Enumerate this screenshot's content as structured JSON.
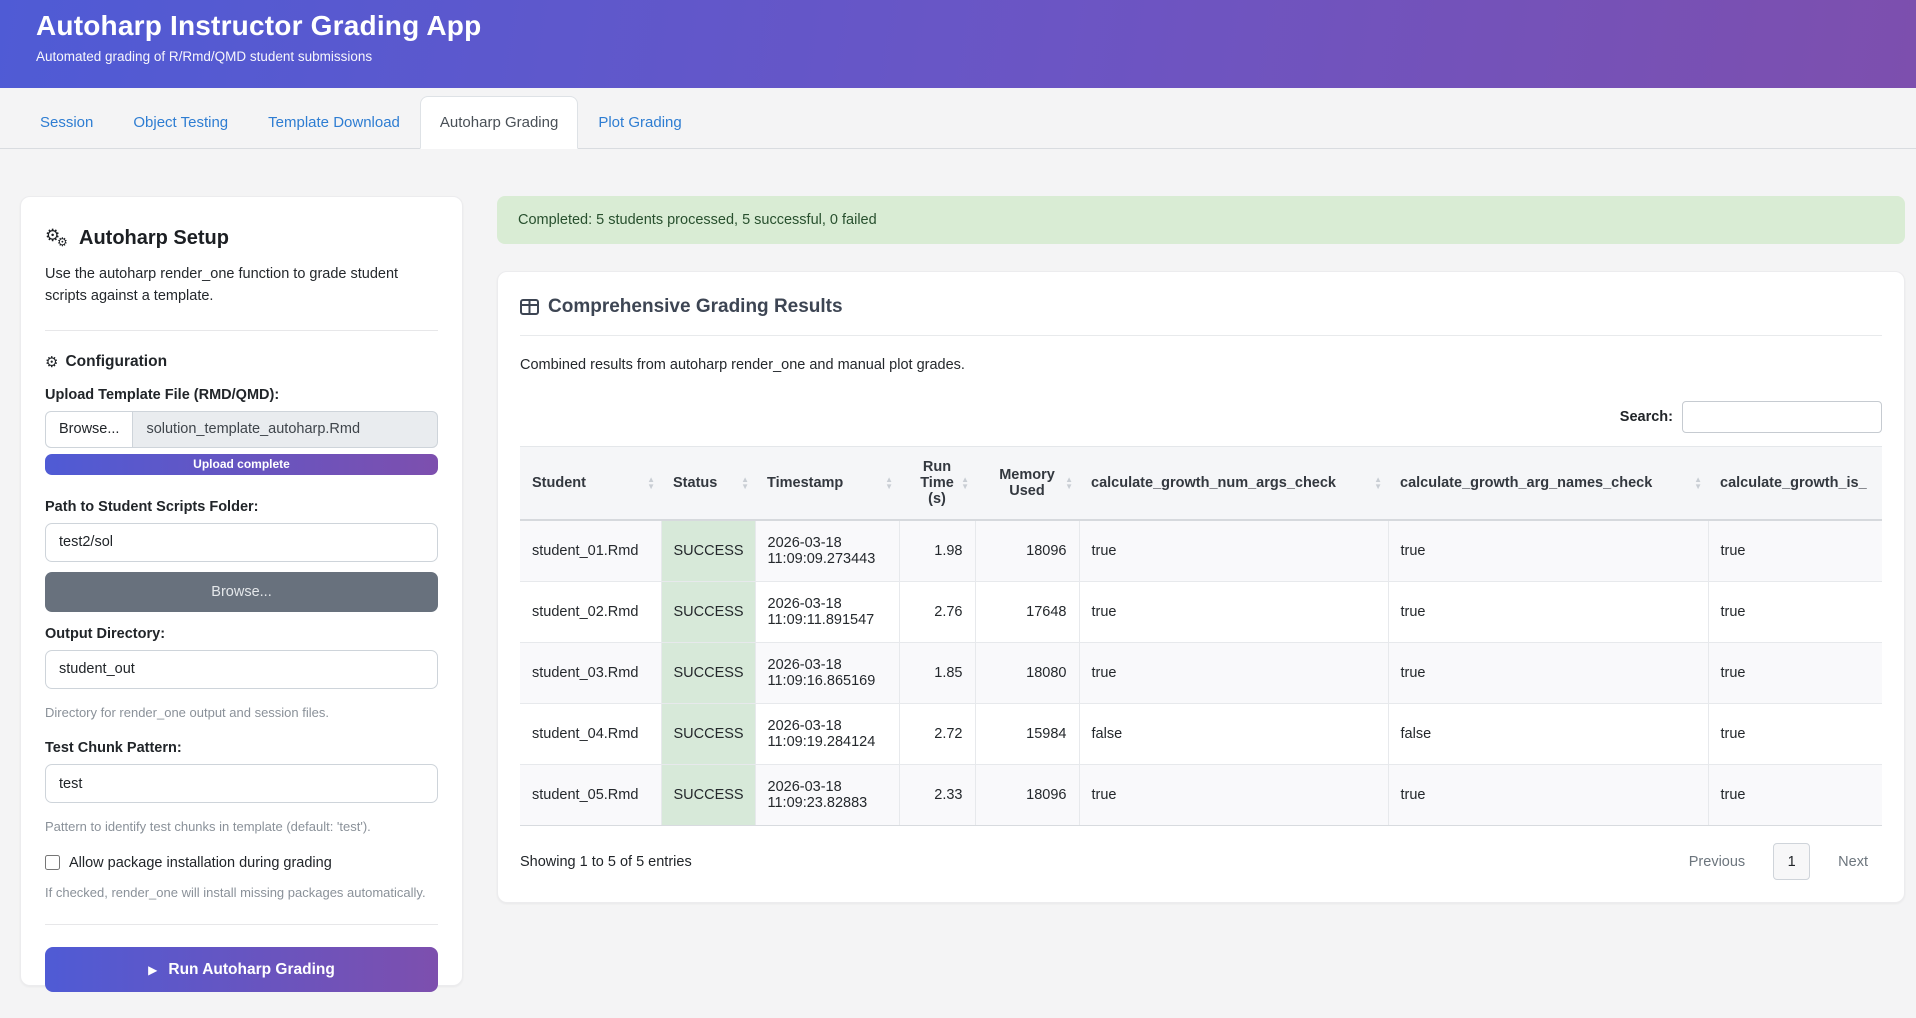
{
  "header": {
    "title": "Autoharp Instructor Grading App",
    "subtitle": "Automated grading of R/Rmd/QMD student submissions"
  },
  "tabs": [
    {
      "label": "Session",
      "active": false
    },
    {
      "label": "Object Testing",
      "active": false
    },
    {
      "label": "Template Download",
      "active": false
    },
    {
      "label": "Autoharp Grading",
      "active": true
    },
    {
      "label": "Plot Grading",
      "active": false
    }
  ],
  "sidebar": {
    "title": "Autoharp Setup",
    "description": "Use the autoharp render_one function to grade student scripts against a template.",
    "config_heading": "Configuration",
    "upload": {
      "label": "Upload Template File (RMD/QMD):",
      "browse_label": "Browse...",
      "filename": "solution_template_autoharp.Rmd",
      "status": "Upload complete"
    },
    "scripts_folder": {
      "label": "Path to Student Scripts Folder:",
      "value": "test2/sol",
      "browse_label": "Browse..."
    },
    "output_dir": {
      "label": "Output Directory:",
      "value": "student_out",
      "help": "Directory for render_one output and session files."
    },
    "chunk_pattern": {
      "label": "Test Chunk Pattern:",
      "value": "test",
      "help": "Pattern to identify test chunks in template (default: 'test')."
    },
    "package_checkbox": {
      "label": "Allow package installation during grading",
      "checked": false,
      "help": "If checked, render_one will install missing packages automatically."
    },
    "run_button_label": "Run Autoharp Grading"
  },
  "main": {
    "alert": "Completed: 5 students processed, 5 successful, 0 failed",
    "results": {
      "title": "Comprehensive Grading Results",
      "description": "Combined results from autoharp render_one and manual plot grades.",
      "search_label": "Search:",
      "search_value": "",
      "table": {
        "columns": [
          "Student",
          "Status",
          "Timestamp",
          "Run Time (s)",
          "Memory Used",
          "calculate_growth_num_args_check",
          "calculate_growth_arg_names_check",
          "calculate_growth_is_"
        ],
        "rows": [
          [
            "student_01.Rmd",
            "SUCCESS",
            "2026-03-18 11:09:09.273443",
            "1.98",
            "18096",
            "true",
            "true",
            "true"
          ],
          [
            "student_02.Rmd",
            "SUCCESS",
            "2026-03-18 11:09:11.891547",
            "2.76",
            "17648",
            "true",
            "true",
            "true"
          ],
          [
            "student_03.Rmd",
            "SUCCESS",
            "2026-03-18 11:09:16.865169",
            "1.85",
            "18080",
            "true",
            "true",
            "true"
          ],
          [
            "student_04.Rmd",
            "SUCCESS",
            "2026-03-18 11:09:19.284124",
            "2.72",
            "15984",
            "false",
            "false",
            "true"
          ],
          [
            "student_05.Rmd",
            "SUCCESS",
            "2026-03-18 11:09:23.82883",
            "2.33",
            "18096",
            "true",
            "true",
            "true"
          ]
        ]
      },
      "footer": {
        "info": "Showing 1 to 5 of 5 entries",
        "previous_label": "Previous",
        "current_page": "1",
        "next_label": "Next"
      }
    }
  },
  "colors": {
    "grad-start": "#4f5bd5",
    "grad-end": "#7d4fae",
    "link": "#2e7dd2",
    "success-bg": "#d9ecd4",
    "success-text": "#28502e",
    "status-cell": "#d7e9d9"
  }
}
